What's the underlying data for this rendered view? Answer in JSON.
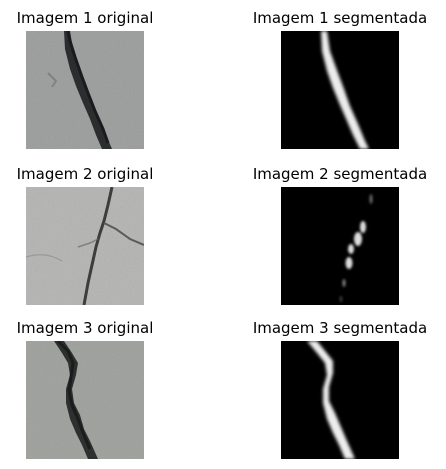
{
  "figure": {
    "panels": [
      {
        "title": "Imagem 1 original"
      },
      {
        "title": "Imagem 1 segmentada"
      },
      {
        "title": "Imagem 2 original"
      },
      {
        "title": "Imagem 2 segmentada"
      },
      {
        "title": "Imagem 3 original"
      },
      {
        "title": "Imagem 3 segmentada"
      }
    ]
  }
}
